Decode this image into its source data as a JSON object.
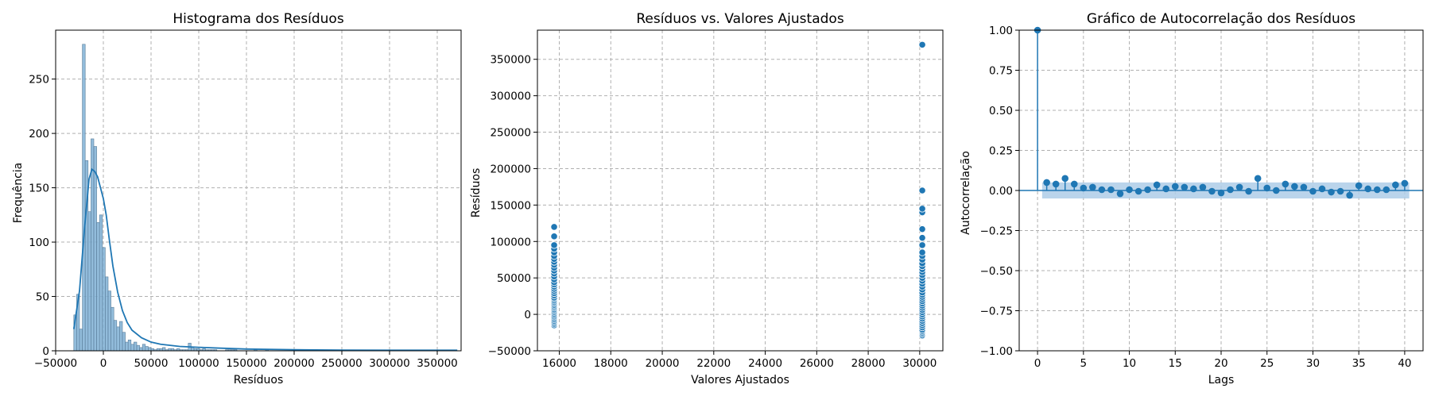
{
  "chart_data": [
    {
      "type": "histogram",
      "title": "Histograma dos Resíduos",
      "xlabel": "Resíduos",
      "ylabel": "Frequência",
      "xlim": [
        -50000,
        375000
      ],
      "ylim": [
        0,
        295
      ],
      "xticks": [
        -50000,
        0,
        50000,
        100000,
        150000,
        200000,
        250000,
        300000,
        350000
      ],
      "xtick_labels": [
        "−50000",
        "0",
        "50000",
        "100000",
        "150000",
        "200000",
        "250000",
        "300000",
        "350000"
      ],
      "yticks": [
        0,
        50,
        100,
        150,
        200,
        250
      ],
      "grid": true,
      "bins": {
        "start": -31000,
        "width": 3000,
        "counts": [
          33,
          52,
          20,
          282,
          175,
          128,
          195,
          188,
          118,
          125,
          95,
          68,
          55,
          40,
          28,
          22,
          27,
          17,
          8,
          10,
          6,
          8,
          5,
          3,
          6,
          4,
          3,
          2,
          1,
          2,
          2,
          3,
          1,
          2,
          2,
          1,
          2,
          1,
          1,
          1,
          7,
          3,
          2,
          2,
          1,
          2,
          1,
          1,
          1,
          1,
          0,
          0,
          0,
          1,
          1,
          1,
          1,
          0,
          0,
          0,
          0,
          0,
          0,
          1,
          0,
          0,
          0,
          1
        ]
      },
      "kde": {
        "x": [
          -31000,
          -25000,
          -20000,
          -15000,
          -12000,
          -9000,
          -6000,
          -3000,
          0,
          3000,
          6000,
          10000,
          15000,
          20000,
          25000,
          30000,
          40000,
          50000,
          60000,
          80000,
          100000,
          120000,
          150000,
          200000,
          250000,
          300000,
          350000,
          371000
        ],
        "y": [
          20,
          55,
          110,
          158,
          167,
          165,
          160,
          150,
          140,
          125,
          104,
          78,
          54,
          37,
          26,
          19,
          12,
          8,
          6,
          4,
          3.2,
          2.5,
          1.6,
          1.0,
          0.6,
          0.5,
          0.5,
          0.5
        ]
      },
      "colors": {
        "bar_fill": "#7fb0d5",
        "bar_edge": "#5a7d9a",
        "kde": "#1f77b4"
      }
    },
    {
      "type": "scatter",
      "title": "Resíduos vs. Valores Ajustados",
      "xlabel": "Valores Ajustados",
      "ylabel": "Resíduos",
      "xlim": [
        15150,
        30900
      ],
      "ylim": [
        -50000,
        390000
      ],
      "xticks": [
        16000,
        18000,
        20000,
        22000,
        24000,
        26000,
        28000,
        30000
      ],
      "yticks": [
        -50000,
        0,
        50000,
        100000,
        150000,
        200000,
        250000,
        300000,
        350000
      ],
      "ytick_labels": [
        "−50000",
        "0",
        "50000",
        "100000",
        "150000",
        "200000",
        "250000",
        "300000",
        "350000"
      ],
      "grid": true,
      "series": [
        {
          "x": 15800,
          "y": [
            -15000,
            -13000,
            -11000,
            -9000,
            -7000,
            -5000,
            -3000,
            -1000,
            1000,
            3000,
            5000,
            7000,
            9000,
            11000,
            13000,
            15000,
            17000,
            19000,
            21000,
            23000,
            26000,
            29000,
            32000,
            35000,
            38000,
            41000,
            44000,
            48000,
            52000,
            56000,
            60000,
            64000,
            68000,
            72000,
            76000,
            80000,
            85000,
            90000,
            95000,
            107000,
            120000
          ]
        },
        {
          "x": 30100,
          "y": [
            -29000,
            -27000,
            -25000,
            -23000,
            -21000,
            -18000,
            -15000,
            -12000,
            -9000,
            -6000,
            -3000,
            0,
            3000,
            6000,
            9000,
            12000,
            15000,
            18000,
            21000,
            24000,
            27000,
            30000,
            34000,
            38000,
            42000,
            46000,
            50000,
            54000,
            58000,
            62000,
            66000,
            70000,
            75000,
            80000,
            85000,
            95000,
            105000,
            117000,
            140000,
            145000,
            170000,
            370000
          ]
        }
      ],
      "colors": {
        "point": "#1f77b4"
      }
    },
    {
      "type": "stem",
      "title": "Gráfico de Autocorrelação dos Resíduos",
      "xlabel": "Lags",
      "ylabel": "Autocorrelação",
      "xlim": [
        -2,
        42
      ],
      "ylim": [
        -1.0,
        1.0
      ],
      "xticks": [
        0,
        5,
        10,
        15,
        20,
        25,
        30,
        35,
        40
      ],
      "yticks": [
        -1.0,
        -0.75,
        -0.5,
        -0.25,
        0.0,
        0.25,
        0.5,
        0.75,
        1.0
      ],
      "ytick_labels": [
        "−1.00",
        "−0.75",
        "−0.50",
        "−0.25",
        "0.00",
        "0.25",
        "0.50",
        "0.75",
        "1.00"
      ],
      "grid": true,
      "lags": [
        0,
        1,
        2,
        3,
        4,
        5,
        6,
        7,
        8,
        9,
        10,
        11,
        12,
        13,
        14,
        15,
        16,
        17,
        18,
        19,
        20,
        21,
        22,
        23,
        24,
        25,
        26,
        27,
        28,
        29,
        30,
        31,
        32,
        33,
        34,
        35,
        36,
        37,
        38,
        39,
        40
      ],
      "acf": [
        1.0,
        0.05,
        0.04,
        0.075,
        0.04,
        0.015,
        0.02,
        0.005,
        0.005,
        -0.02,
        0.005,
        -0.005,
        0.005,
        0.035,
        0.01,
        0.025,
        0.02,
        0.01,
        0.02,
        -0.005,
        -0.015,
        0.005,
        0.02,
        -0.005,
        0.075,
        0.015,
        0.0,
        0.04,
        0.025,
        0.02,
        -0.005,
        0.01,
        -0.01,
        -0.005,
        -0.03,
        0.03,
        0.01,
        0.005,
        0.005,
        0.035,
        0.045
      ],
      "confidence_band": 0.05,
      "colors": {
        "stem": "#1f77b4",
        "band": "#aecde8"
      }
    }
  ]
}
